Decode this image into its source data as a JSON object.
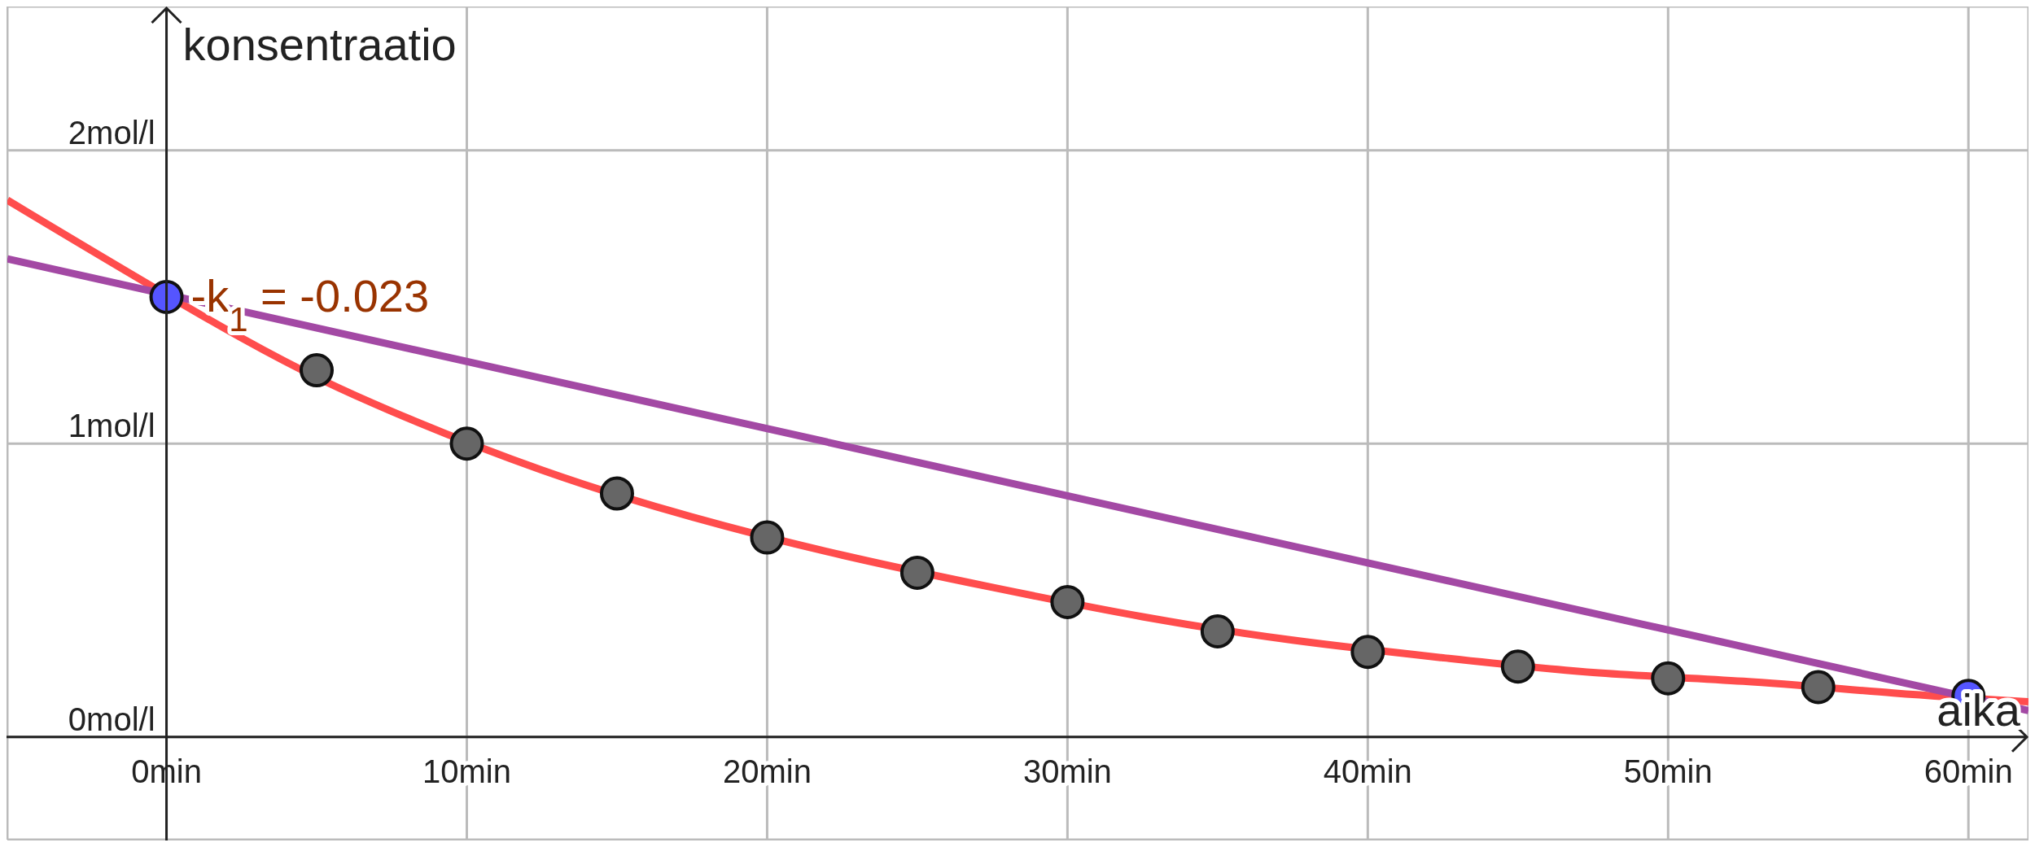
{
  "chart_data": {
    "type": "scatter",
    "xlabel": "aika",
    "ylabel": "konsentraatio",
    "xlim": [
      -5.3,
      62
    ],
    "ylim": [
      -0.35,
      2.49
    ],
    "xticks": [
      {
        "value": 0,
        "label": "0min"
      },
      {
        "value": 10,
        "label": "10min"
      },
      {
        "value": 20,
        "label": "20min"
      },
      {
        "value": 30,
        "label": "30min"
      },
      {
        "value": 40,
        "label": "40min"
      },
      {
        "value": 50,
        "label": "50min"
      },
      {
        "value": 60,
        "label": "60min"
      }
    ],
    "yticks": [
      {
        "value": 0,
        "label": "0mol/l"
      },
      {
        "value": 1,
        "label": "1mol/l"
      },
      {
        "value": 2,
        "label": "2mol/l"
      }
    ],
    "grid": true,
    "annotations": [
      {
        "text": "-k$_{1}$ = -0.023",
        "x": 0,
        "y": 1.5
      }
    ],
    "series": [
      {
        "type": "line",
        "color": "#ff4d4d",
        "x": [
          -5.3,
          2.5,
          7.5,
          12.5,
          17.5,
          22.5,
          27.5,
          32.5,
          37.5,
          42.5,
          47.5,
          52.5,
          57.5,
          62
        ],
        "values": [
          1.83,
          1.36,
          1.11,
          0.91,
          0.75,
          0.62,
          0.51,
          0.41,
          0.33,
          0.27,
          0.22,
          0.19,
          0.15,
          0.12
        ]
      },
      {
        "type": "line",
        "color": "#a349a4",
        "x": [
          -5.3,
          62
        ],
        "values": [
          1.63,
          0.09
        ]
      },
      {
        "marker": "circle",
        "color": "#666666",
        "x": [
          5,
          10,
          15,
          20,
          25,
          30,
          35,
          40,
          45,
          50,
          55
        ],
        "values": [
          1.25,
          1.0,
          0.83,
          0.68,
          0.56,
          0.46,
          0.36,
          0.29,
          0.24,
          0.2,
          0.17
        ]
      },
      {
        "marker": "circle",
        "color": "#5555ff",
        "x": [
          0,
          60
        ],
        "values": [
          1.5,
          0.14
        ]
      }
    ]
  }
}
